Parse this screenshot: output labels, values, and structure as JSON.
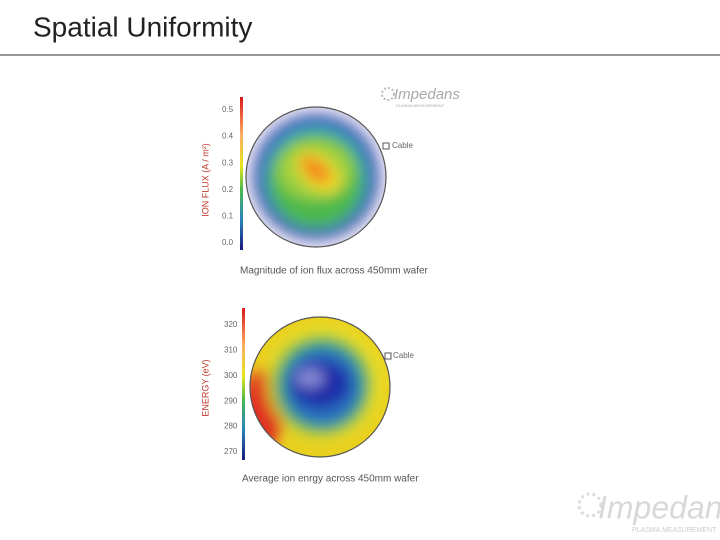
{
  "title": "Spatial Uniformity",
  "logo": {
    "name": "Impedans",
    "tagline": "PLASMA MEASUREMENT"
  },
  "charts": [
    {
      "axis_label": "ION FLUX (A / m²)",
      "ticks": [
        "0.5",
        "0.4",
        "0.3",
        "0.2",
        "0.1",
        "0.0"
      ],
      "annotation": "Cable",
      "caption": "Magnitude of ion flux across 450mm wafer"
    },
    {
      "axis_label": "ENERGY (eV)",
      "ticks": [
        "320",
        "310",
        "300",
        "290",
        "280",
        "270"
      ],
      "annotation": "Cable",
      "caption": "Average ion enrgy across 450mm wafer"
    }
  ]
}
